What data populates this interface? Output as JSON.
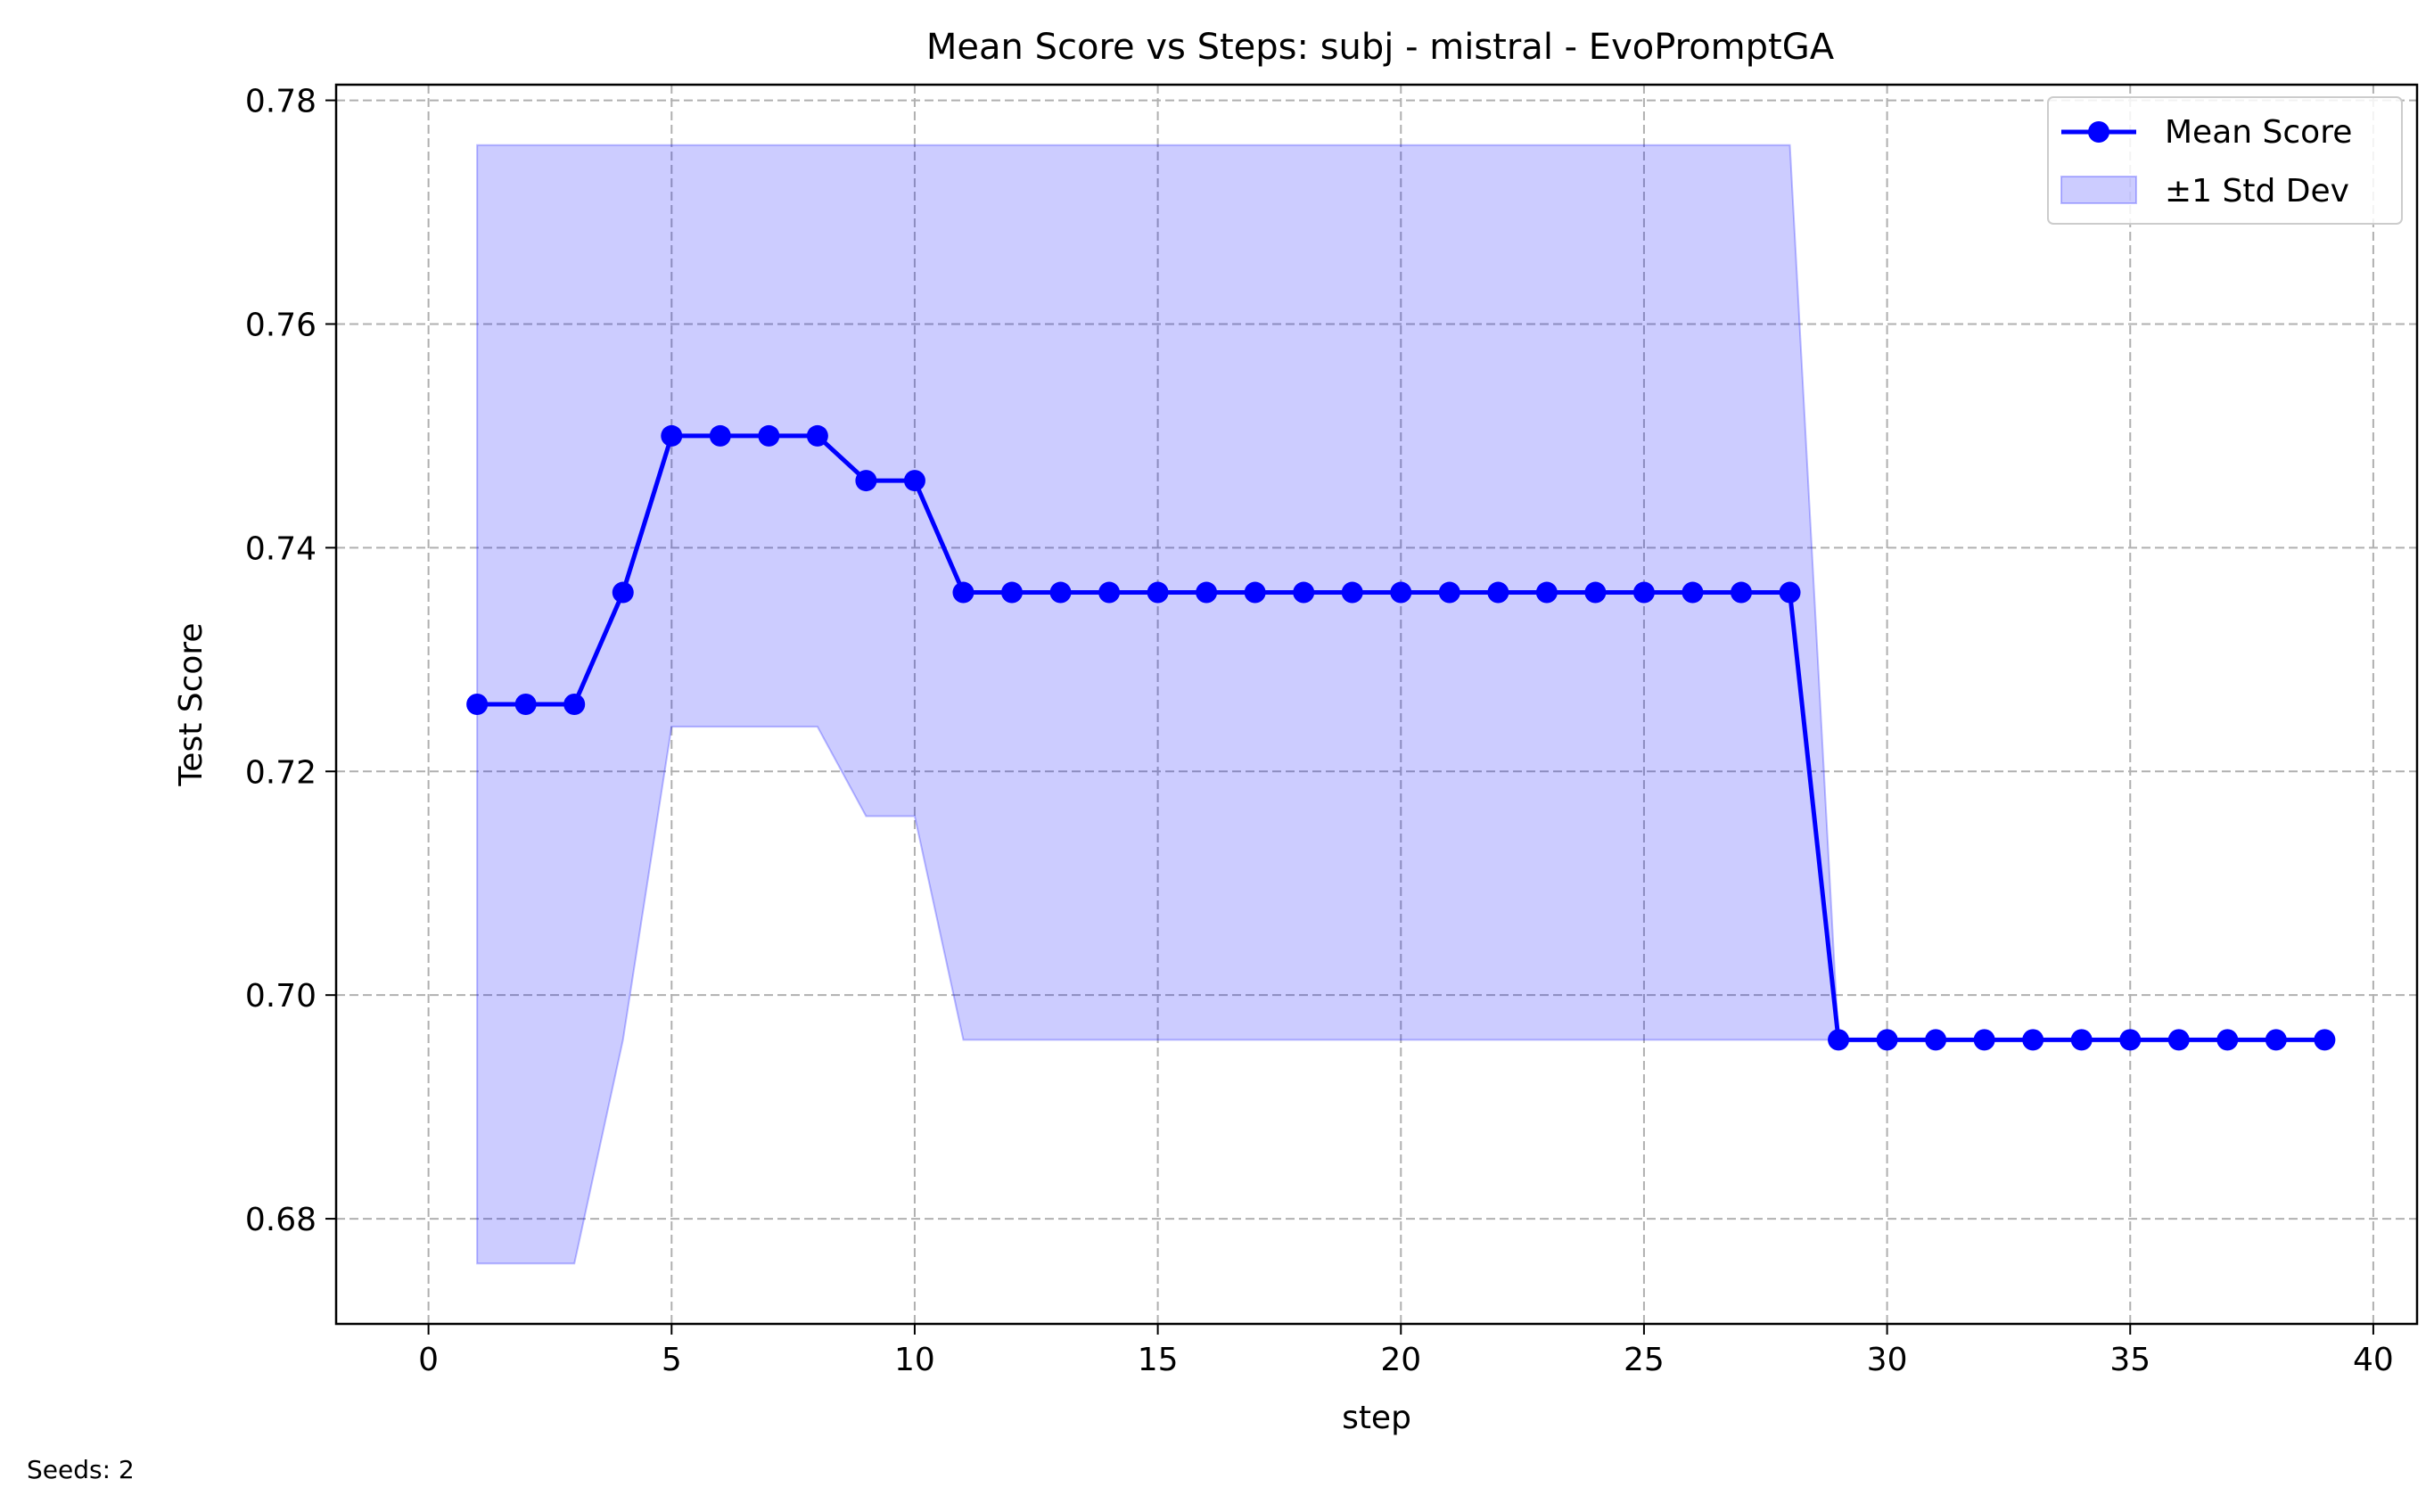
{
  "chart_data": {
    "type": "line",
    "title": "Mean Score vs Steps: subj - mistral - EvoPromptGA",
    "xlabel": "step",
    "ylabel": "Test Score",
    "xlim": [
      -1.9,
      40.9
    ],
    "ylim": [
      0.6706,
      0.7814
    ],
    "xticks": [
      0,
      5,
      10,
      15,
      20,
      25,
      30,
      35,
      40
    ],
    "yticks": [
      0.68,
      0.7,
      0.72,
      0.74,
      0.76,
      0.78
    ],
    "ytick_labels": [
      "0.68",
      "0.70",
      "0.72",
      "0.74",
      "0.76",
      "0.78"
    ],
    "grid": true,
    "legend_position": "top-right",
    "x": [
      1,
      2,
      3,
      4,
      5,
      6,
      7,
      8,
      9,
      10,
      11,
      12,
      13,
      14,
      15,
      16,
      17,
      18,
      19,
      20,
      21,
      22,
      23,
      24,
      25,
      26,
      27,
      28,
      29,
      30,
      31,
      32,
      33,
      34,
      35,
      36,
      37,
      38,
      39
    ],
    "series": [
      {
        "name": "Mean Score",
        "color": "#0000ff",
        "values": [
          0.726,
          0.726,
          0.726,
          0.736,
          0.75,
          0.75,
          0.75,
          0.75,
          0.746,
          0.746,
          0.736,
          0.736,
          0.736,
          0.736,
          0.736,
          0.736,
          0.736,
          0.736,
          0.736,
          0.736,
          0.736,
          0.736,
          0.736,
          0.736,
          0.736,
          0.736,
          0.736,
          0.736,
          0.696,
          0.696,
          0.696,
          0.696,
          0.696,
          0.696,
          0.696,
          0.696,
          0.696,
          0.696,
          0.696
        ]
      }
    ],
    "band": {
      "name": "±1 Std Dev",
      "color": "#0000ff",
      "opacity": 0.2,
      "upper": [
        0.776,
        0.776,
        0.776,
        0.776,
        0.776,
        0.776,
        0.776,
        0.776,
        0.776,
        0.776,
        0.776,
        0.776,
        0.776,
        0.776,
        0.776,
        0.776,
        0.776,
        0.776,
        0.776,
        0.776,
        0.776,
        0.776,
        0.776,
        0.776,
        0.776,
        0.776,
        0.776,
        0.776,
        0.696,
        0.696,
        0.696,
        0.696,
        0.696,
        0.696,
        0.696,
        0.696,
        0.696,
        0.696,
        0.696
      ],
      "lower": [
        0.676,
        0.676,
        0.676,
        0.696,
        0.724,
        0.724,
        0.724,
        0.724,
        0.716,
        0.716,
        0.696,
        0.696,
        0.696,
        0.696,
        0.696,
        0.696,
        0.696,
        0.696,
        0.696,
        0.696,
        0.696,
        0.696,
        0.696,
        0.696,
        0.696,
        0.696,
        0.696,
        0.696,
        0.696,
        0.696,
        0.696,
        0.696,
        0.696,
        0.696,
        0.696,
        0.696,
        0.696,
        0.696,
        0.696
      ]
    }
  },
  "footer": {
    "seeds_label": "Seeds: 2"
  }
}
